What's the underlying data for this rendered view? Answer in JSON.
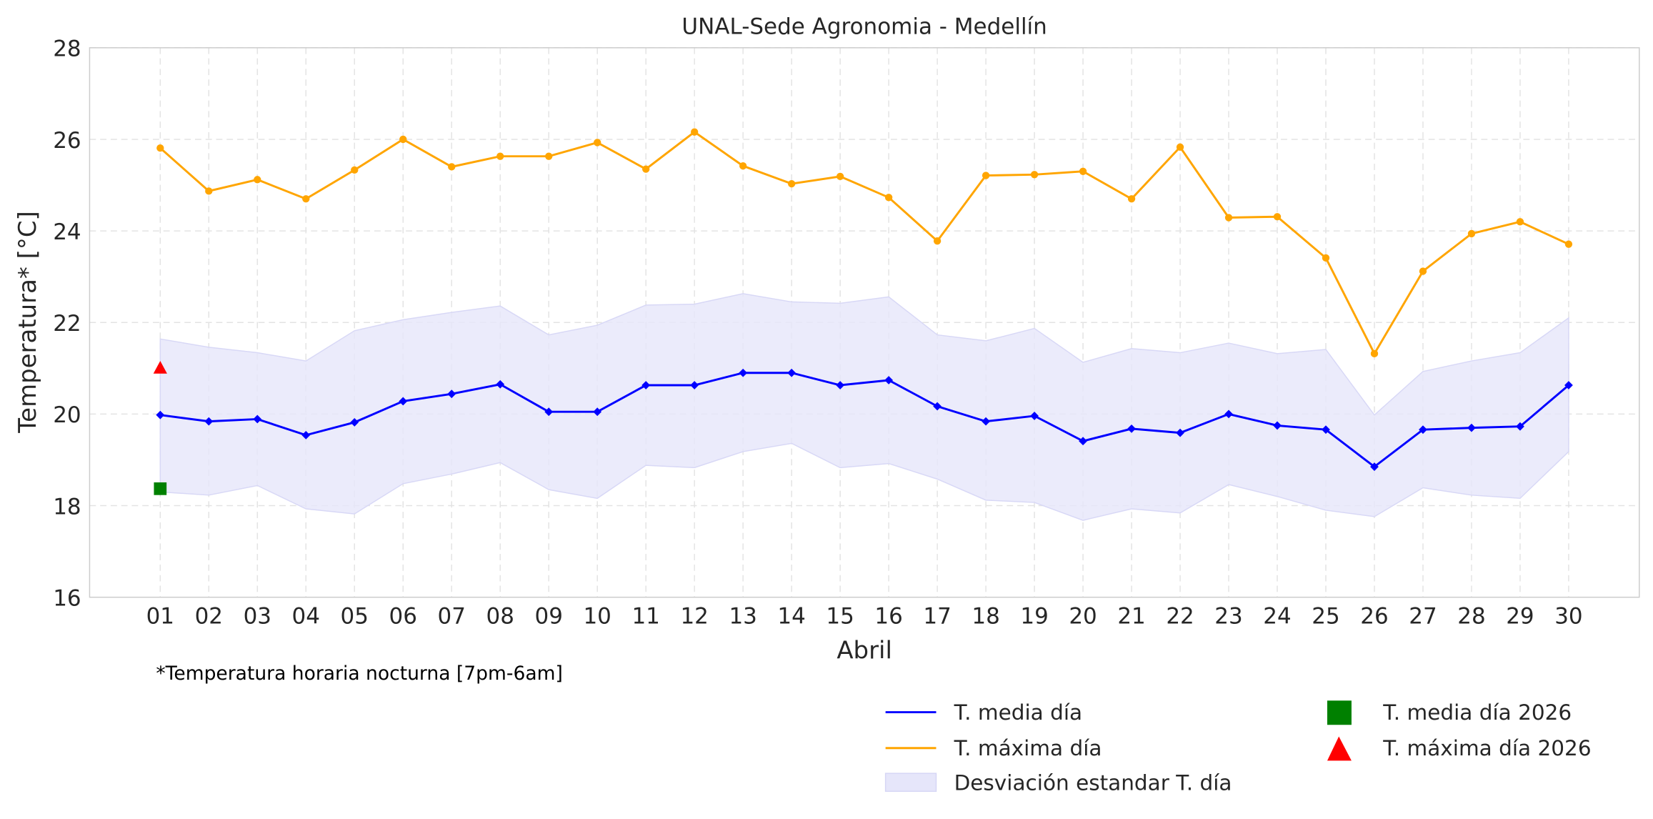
{
  "chart_data": {
    "type": "line",
    "title": "UNAL-Sede Agronomia - Medellín",
    "xlabel": "Abril",
    "ylabel": "Temperatura* [°C]",
    "note": "*Temperatura horaria nocturna [7pm-6am]",
    "ylim": [
      16,
      28
    ],
    "yticks": [
      16,
      18,
      20,
      22,
      24,
      26,
      28
    ],
    "grid": true,
    "legend_placement": "bottom-right, outside",
    "categories": [
      "01",
      "02",
      "03",
      "04",
      "05",
      "06",
      "07",
      "08",
      "09",
      "10",
      "11",
      "12",
      "13",
      "14",
      "15",
      "16",
      "17",
      "18",
      "19",
      "20",
      "21",
      "22",
      "23",
      "24",
      "25",
      "26",
      "27",
      "28",
      "29",
      "30"
    ],
    "series": [
      {
        "name": "T. media día",
        "color": "#0000ff",
        "values": [
          19.98,
          19.84,
          19.89,
          19.54,
          19.82,
          20.28,
          20.44,
          20.65,
          20.05,
          20.05,
          20.63,
          20.63,
          20.9,
          20.9,
          20.63,
          20.74,
          20.17,
          19.84,
          19.96,
          19.41,
          19.68,
          19.59,
          20.0,
          19.75,
          19.66,
          18.85,
          19.66,
          19.7,
          19.73,
          20.63
        ]
      },
      {
        "name": "T. máxima día",
        "color": "#ffa500",
        "values": [
          25.81,
          24.87,
          25.12,
          24.7,
          25.33,
          26.0,
          25.4,
          25.63,
          25.63,
          25.93,
          25.35,
          26.16,
          25.42,
          25.03,
          25.19,
          24.73,
          23.78,
          25.21,
          25.23,
          25.3,
          24.7,
          25.83,
          24.29,
          24.31,
          23.41,
          21.32,
          23.12,
          23.94,
          24.2,
          23.71
        ]
      }
    ],
    "band": {
      "name": "Desviación estandar T. día",
      "color": "#e6e6fa",
      "upper": [
        21.64,
        21.46,
        21.34,
        21.16,
        21.82,
        22.06,
        22.22,
        22.36,
        21.73,
        21.94,
        22.38,
        22.4,
        22.63,
        22.45,
        22.42,
        22.56,
        21.73,
        21.6,
        21.87,
        21.13,
        21.43,
        21.34,
        21.55,
        21.32,
        21.41,
        19.98,
        20.93,
        21.16,
        21.34,
        22.1
      ],
      "lower": [
        18.3,
        18.23,
        18.44,
        17.93,
        17.82,
        18.48,
        18.69,
        18.94,
        18.35,
        18.16,
        18.88,
        18.83,
        19.18,
        19.36,
        18.83,
        18.92,
        18.58,
        18.12,
        18.07,
        17.68,
        17.93,
        17.84,
        18.46,
        18.2,
        17.9,
        17.76,
        18.39,
        18.23,
        18.16,
        19.18
      ]
    },
    "points_2026": [
      {
        "name": "T. media día 2026",
        "marker": "square",
        "color": "#008000",
        "category": "01",
        "value": 18.37
      },
      {
        "name": "T. máxima día 2026",
        "marker": "triangle",
        "color": "#ff0000",
        "category": "01",
        "value": 21.0
      }
    ]
  }
}
